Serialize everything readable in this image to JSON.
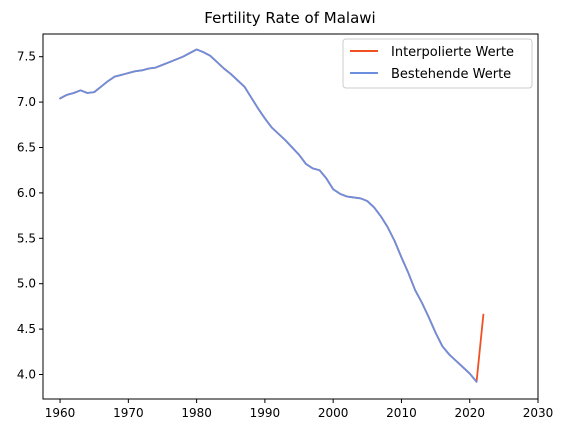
{
  "chart_data": {
    "type": "line",
    "title": "Fertility Rate of Malawi",
    "xlabel": "",
    "ylabel": "",
    "xlim": [
      1957.5,
      2030
    ],
    "ylim": [
      3.73,
      7.75
    ],
    "x_ticks": [
      1960,
      1970,
      1980,
      1990,
      2000,
      2010,
      2020,
      2030
    ],
    "y_ticks": [
      4.0,
      4.5,
      5.0,
      5.5,
      6.0,
      6.5,
      7.0,
      7.5
    ],
    "grid": false,
    "legend_position": "top-right",
    "series": [
      {
        "name": "Interpolierte Werte",
        "color": "#F05123",
        "x": [
          1960,
          1961,
          1962,
          1963,
          1964,
          1965,
          1966,
          1967,
          1968,
          1969,
          1970,
          1971,
          1972,
          1973,
          1974,
          1975,
          1976,
          1977,
          1978,
          1979,
          1980,
          1981,
          1982,
          1983,
          1984,
          1985,
          1986,
          1987,
          1988,
          1989,
          1990,
          1991,
          1992,
          1993,
          1994,
          1995,
          1996,
          1997,
          1998,
          1999,
          2000,
          2001,
          2002,
          2003,
          2004,
          2005,
          2006,
          2007,
          2008,
          2009,
          2010,
          2011,
          2012,
          2013,
          2014,
          2015,
          2016,
          2017,
          2018,
          2019,
          2020,
          2021,
          2022
        ],
        "y": [
          7.04,
          7.08,
          7.1,
          7.13,
          7.1,
          7.11,
          7.17,
          7.23,
          7.28,
          7.3,
          7.32,
          7.34,
          7.35,
          7.37,
          7.38,
          7.41,
          7.44,
          7.47,
          7.5,
          7.54,
          7.58,
          7.55,
          7.51,
          7.44,
          7.37,
          7.31,
          7.24,
          7.17,
          7.05,
          6.93,
          6.82,
          6.72,
          6.65,
          6.58,
          6.5,
          6.42,
          6.32,
          6.27,
          6.25,
          6.16,
          6.04,
          5.99,
          5.96,
          5.95,
          5.94,
          5.91,
          5.84,
          5.74,
          5.62,
          5.47,
          5.29,
          5.12,
          4.93,
          4.79,
          4.63,
          4.46,
          4.31,
          4.22,
          4.15,
          4.08,
          4.01,
          3.92,
          4.66
        ]
      },
      {
        "name": "Bestehende Werte",
        "color": "#6B8FDE",
        "x": [
          1960,
          1961,
          1962,
          1963,
          1964,
          1965,
          1966,
          1967,
          1968,
          1969,
          1970,
          1971,
          1972,
          1973,
          1974,
          1975,
          1976,
          1977,
          1978,
          1979,
          1980,
          1981,
          1982,
          1983,
          1984,
          1985,
          1986,
          1987,
          1988,
          1989,
          1990,
          1991,
          1992,
          1993,
          1994,
          1995,
          1996,
          1997,
          1998,
          1999,
          2000,
          2001,
          2002,
          2003,
          2004,
          2005,
          2006,
          2007,
          2008,
          2009,
          2010,
          2011,
          2012,
          2013,
          2014,
          2015,
          2016,
          2017,
          2018,
          2019,
          2020,
          2021
        ],
        "y": [
          7.04,
          7.08,
          7.1,
          7.13,
          7.1,
          7.11,
          7.17,
          7.23,
          7.28,
          7.3,
          7.32,
          7.34,
          7.35,
          7.37,
          7.38,
          7.41,
          7.44,
          7.47,
          7.5,
          7.54,
          7.58,
          7.55,
          7.51,
          7.44,
          7.37,
          7.31,
          7.24,
          7.17,
          7.05,
          6.93,
          6.82,
          6.72,
          6.65,
          6.58,
          6.5,
          6.42,
          6.32,
          6.27,
          6.25,
          6.16,
          6.04,
          5.99,
          5.96,
          5.95,
          5.94,
          5.91,
          5.84,
          5.74,
          5.62,
          5.47,
          5.29,
          5.12,
          4.93,
          4.79,
          4.63,
          4.46,
          4.31,
          4.22,
          4.15,
          4.08,
          4.01,
          3.92
        ]
      }
    ]
  }
}
